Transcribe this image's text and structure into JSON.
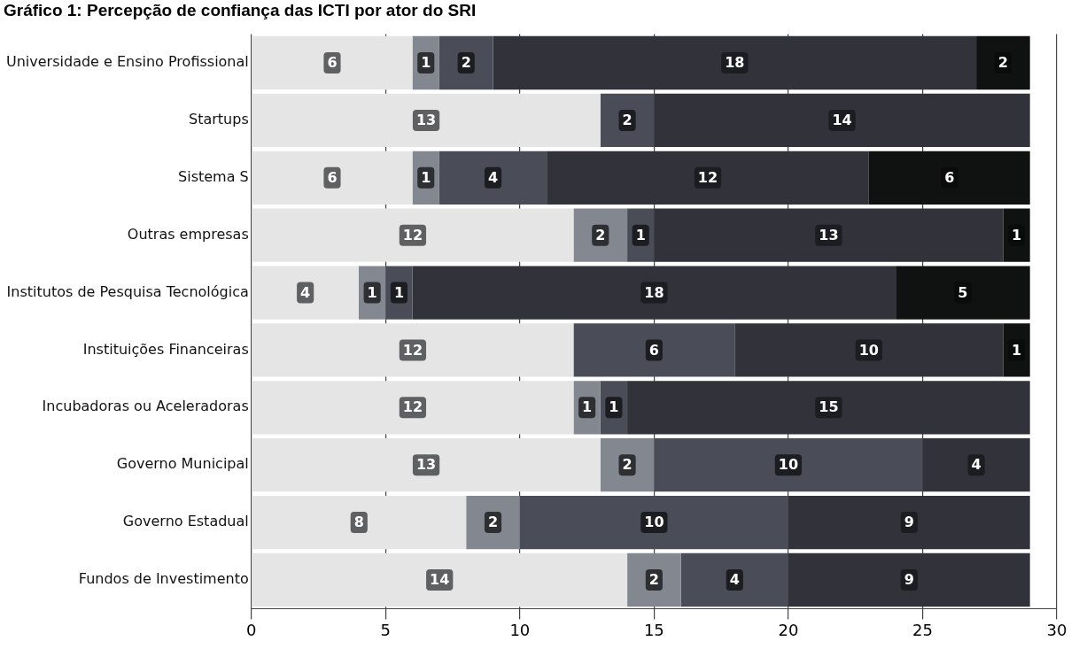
{
  "chart_data": {
    "type": "bar",
    "orientation": "horizontal",
    "stacked": true,
    "title": "Gráfico 1: Percepção de confiança das ICTI por ator do SRI",
    "categories": [
      "Universidade e Ensino Profissional",
      "Startups",
      "Sistema S",
      "Outras empresas",
      "Institutos de Pesquisa Tecnológica",
      "Instituições Financeiras",
      "Incubadoras ou Aceleradoras",
      "Governo Municipal",
      "Governo Estadual",
      "Fundos de Investimento"
    ],
    "series": [
      {
        "color": "#e5e5e5",
        "values": [
          6,
          13,
          6,
          12,
          4,
          12,
          12,
          13,
          8,
          14
        ]
      },
      {
        "color": "#838790",
        "values": [
          1,
          null,
          1,
          2,
          1,
          null,
          1,
          2,
          2,
          2
        ]
      },
      {
        "color": "#4a4d57",
        "values": [
          2,
          2,
          4,
          1,
          1,
          6,
          1,
          10,
          10,
          4
        ]
      },
      {
        "color": "#31323a",
        "values": [
          18,
          14,
          12,
          13,
          18,
          10,
          15,
          4,
          9,
          9
        ]
      },
      {
        "color": "#0f1211",
        "values": [
          2,
          null,
          6,
          1,
          5,
          1,
          null,
          null,
          null,
          null
        ]
      }
    ],
    "xlim": [
      0,
      30
    ],
    "xticks": [
      0,
      5,
      10,
      15,
      20,
      25,
      30
    ],
    "grid": "x",
    "legend": false,
    "data_labels": true
  }
}
